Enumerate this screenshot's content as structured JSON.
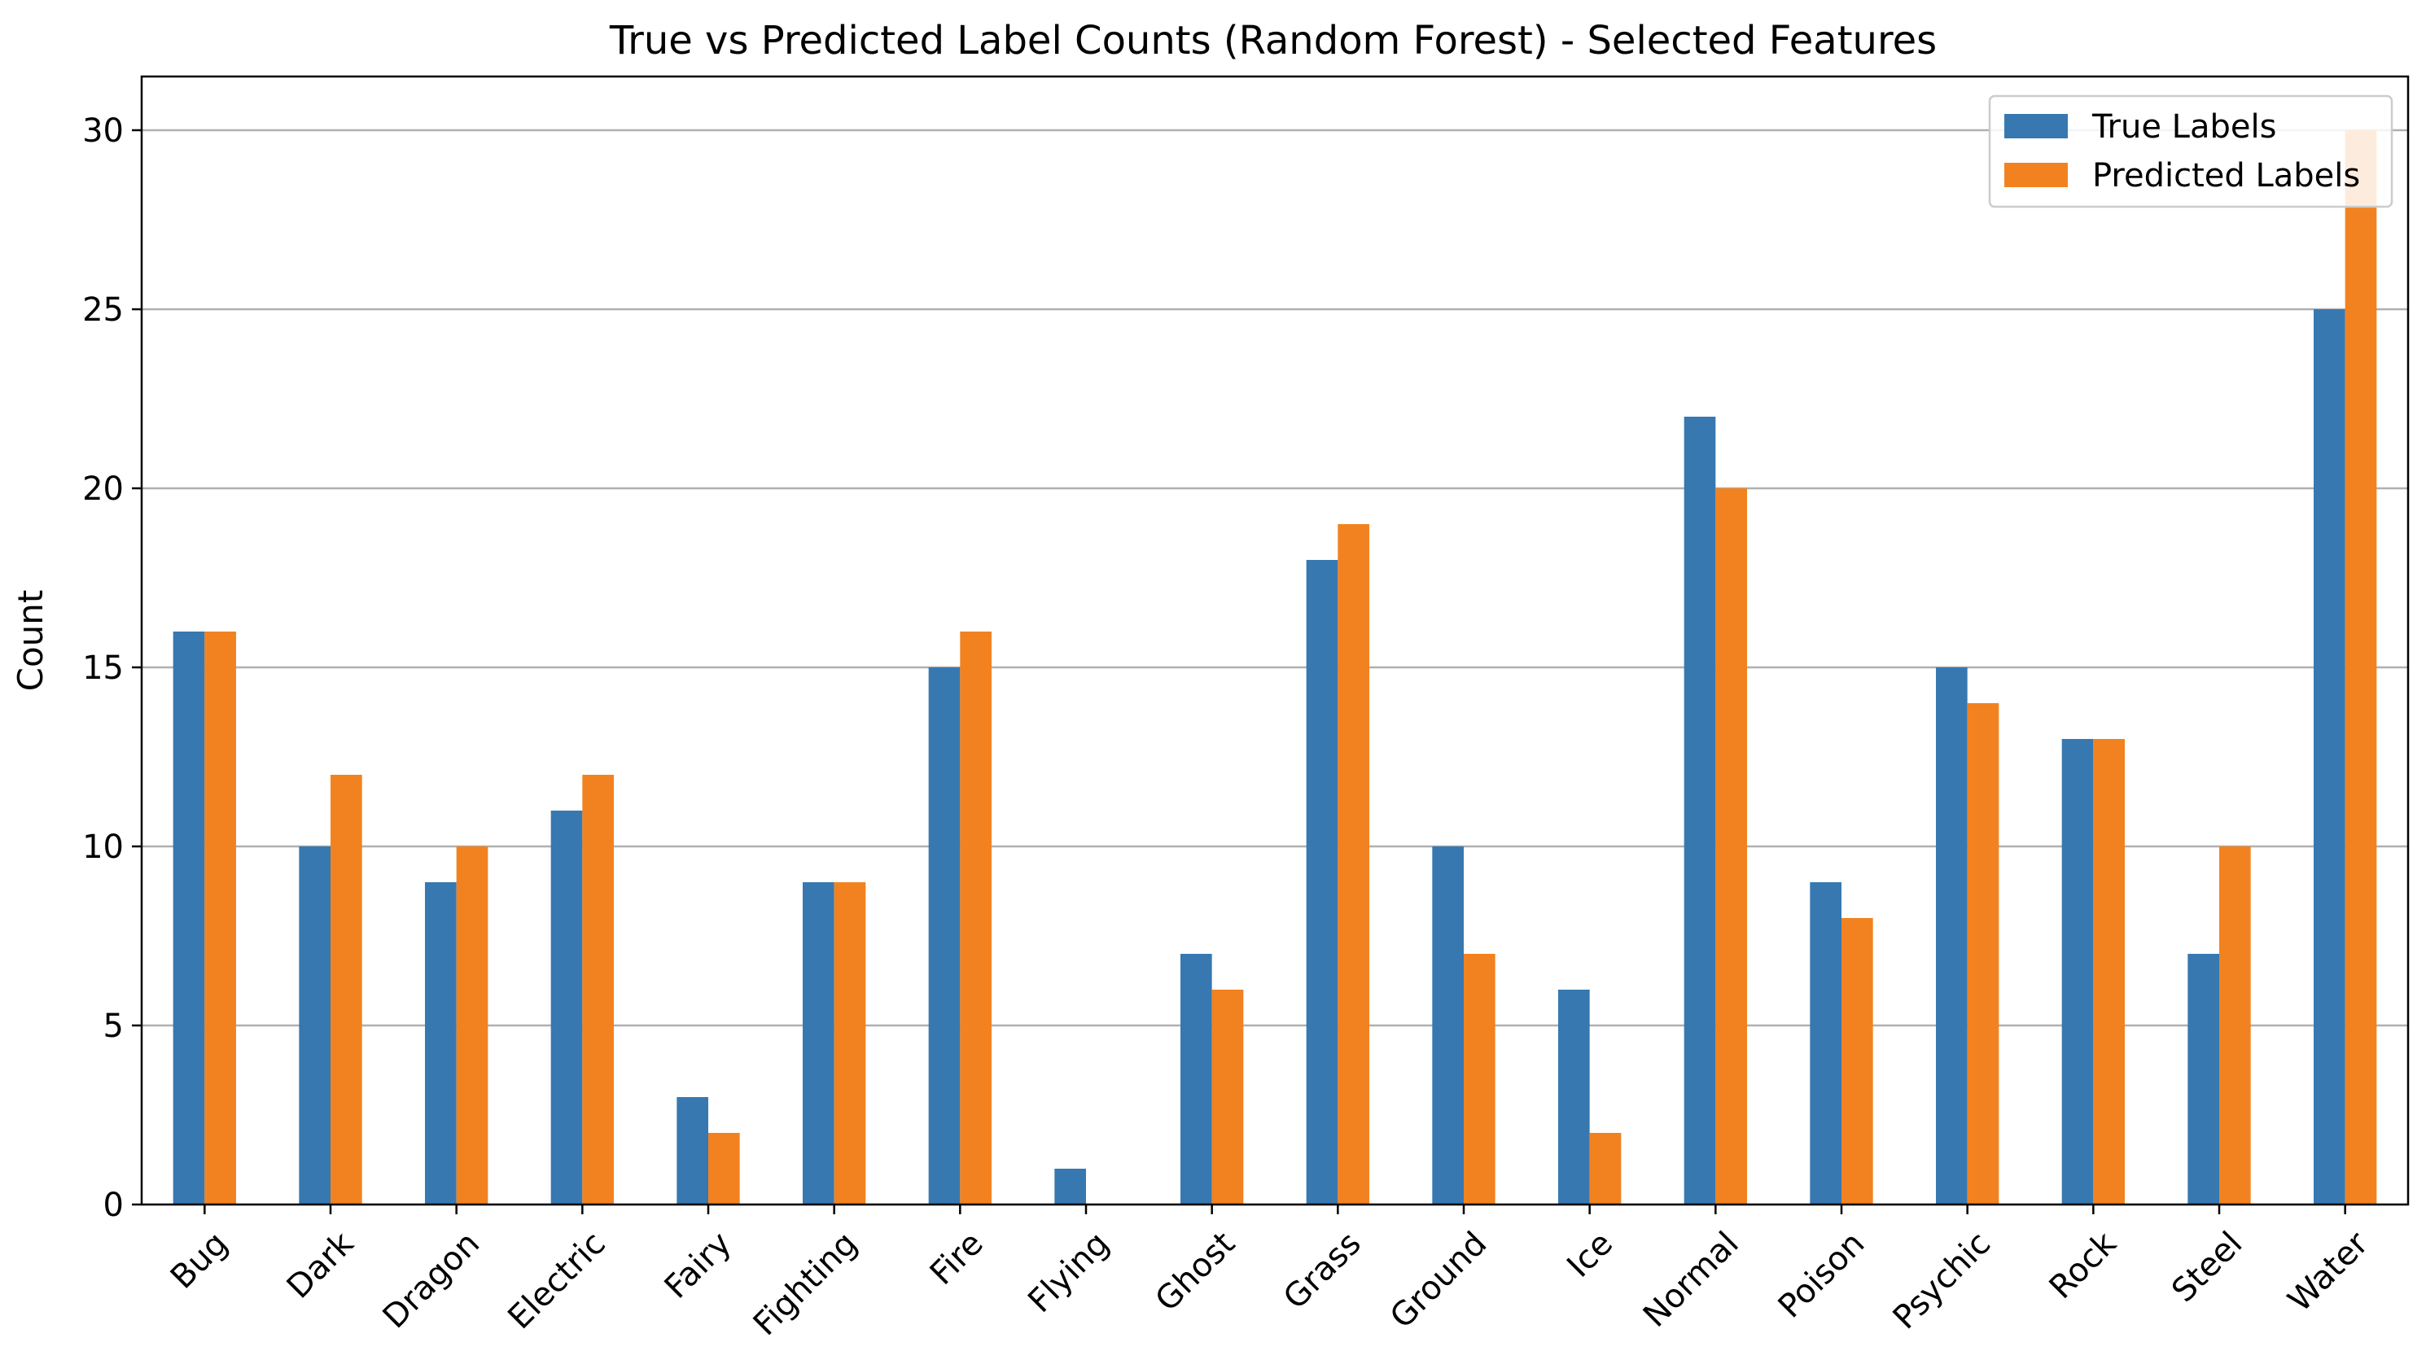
{
  "chart_data": {
    "type": "bar",
    "title": "True vs Predicted Label Counts (Random Forest) - Selected Features",
    "xlabel": "",
    "ylabel": "Count",
    "ylim": [
      0,
      31.5
    ],
    "yticks": [
      0,
      5,
      10,
      15,
      20,
      25,
      30
    ],
    "grid": "horizontal",
    "legend_position": "top-right",
    "categories": [
      "Bug",
      "Dark",
      "Dragon",
      "Electric",
      "Fairy",
      "Fighting",
      "Fire",
      "Flying",
      "Ghost",
      "Grass",
      "Ground",
      "Ice",
      "Normal",
      "Poison",
      "Psychic",
      "Rock",
      "Steel",
      "Water"
    ],
    "series": [
      {
        "name": "True Labels",
        "color": "#3778b1",
        "values": [
          16,
          10,
          9,
          11,
          3,
          9,
          15,
          1,
          7,
          18,
          10,
          6,
          22,
          9,
          15,
          13,
          7,
          25
        ]
      },
      {
        "name": "Predicted Labels",
        "color": "#f28220",
        "values": [
          16,
          12,
          10,
          12,
          2,
          9,
          16,
          0,
          6,
          19,
          7,
          2,
          20,
          8,
          14,
          13,
          10,
          30
        ]
      }
    ]
  }
}
